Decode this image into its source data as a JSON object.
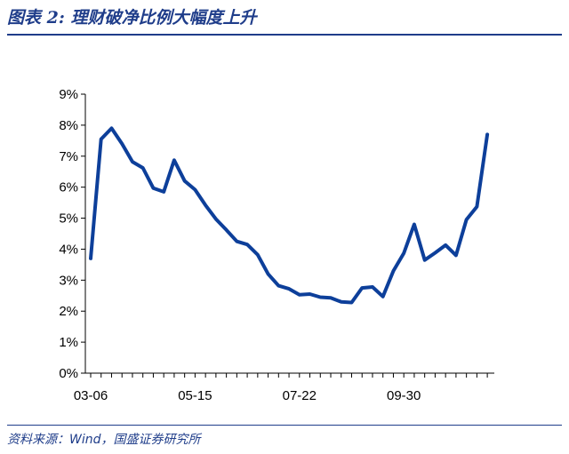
{
  "header": {
    "title": "图表 2:  理财破净比例大幅度上升"
  },
  "footer": {
    "source": "资料来源：Wind，国盛证券研究所"
  },
  "colors": {
    "accent": "#1f3d8a",
    "series": "#0d3f9a",
    "axis": "#000000"
  },
  "chart_data": {
    "type": "line",
    "title": "",
    "xlabel": "",
    "ylabel": "",
    "ylim": [
      0,
      9
    ],
    "y_unit": "%",
    "y_ticks": [
      0,
      1,
      2,
      3,
      4,
      5,
      6,
      7,
      8,
      9
    ],
    "y_tick_labels": [
      "0%",
      "1%",
      "2%",
      "3%",
      "4%",
      "5%",
      "6%",
      "7%",
      "8%",
      "9%"
    ],
    "x_tick_labels": [
      {
        "index": 0,
        "label": "03-06"
      },
      {
        "index": 10,
        "label": "05-15"
      },
      {
        "index": 20,
        "label": "07-22"
      },
      {
        "index": 30,
        "label": "09-30"
      }
    ],
    "grid": false,
    "legend": "none",
    "series": [
      {
        "values": [
          3.7,
          7.55,
          7.9,
          7.4,
          6.82,
          6.62,
          5.97,
          5.85,
          6.87,
          6.2,
          5.92,
          5.42,
          4.97,
          4.62,
          4.25,
          4.15,
          3.82,
          3.2,
          2.82,
          2.72,
          2.53,
          2.55,
          2.45,
          2.43,
          2.3,
          2.28,
          2.75,
          2.78,
          2.47,
          3.3,
          3.87,
          4.8,
          3.65,
          3.88,
          4.13,
          3.8,
          4.95,
          5.37,
          7.7
        ]
      }
    ]
  }
}
